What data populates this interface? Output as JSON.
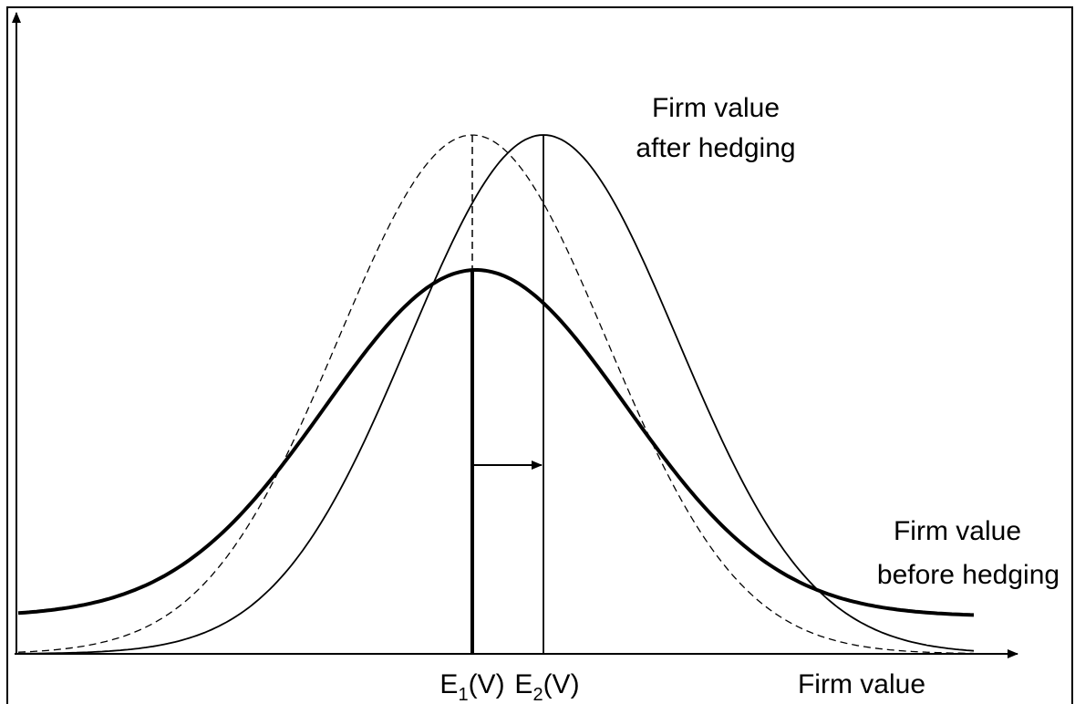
{
  "labels": {
    "after_hedging": [
      "Firm value",
      "after hedging"
    ],
    "before_hedging": [
      "Firm value",
      "before hedging"
    ],
    "x_axis": "Firm value",
    "e1": {
      "base": "E",
      "sub": "1",
      "rest": "(V)"
    },
    "e2": {
      "base": "E",
      "sub": "2",
      "rest": "(V)"
    }
  }
}
